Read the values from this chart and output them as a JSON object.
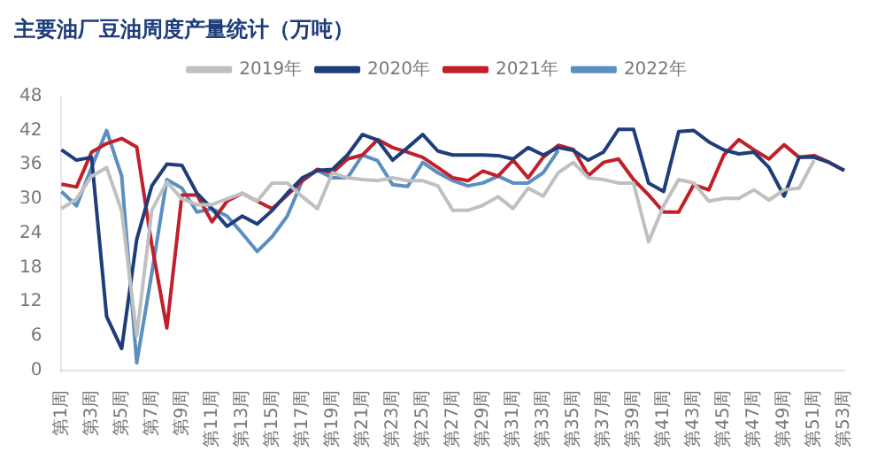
{
  "chart_data": {
    "type": "line",
    "title": "主要油厂豆油周度产量统计（万吨）",
    "categories": [
      "第1周",
      null,
      "第3周",
      null,
      "第5周",
      null,
      "第7周",
      null,
      "第9周",
      null,
      "第11周",
      null,
      "第13周",
      null,
      "第15周",
      null,
      "第17周",
      null,
      "第19周",
      null,
      "第21周",
      null,
      "第23周",
      null,
      "第25周",
      null,
      "第27周",
      null,
      "第29周",
      null,
      "第31周",
      null,
      "第33周",
      null,
      "第35周",
      null,
      "第37周",
      null,
      "第39周",
      null,
      "第41周",
      null,
      "第43周",
      null,
      "第45周",
      null,
      "第47周",
      null,
      "第49周",
      null,
      "第51周",
      null,
      "第53周"
    ],
    "series": [
      {
        "name": "2019年",
        "color": "#c0c0c0",
        "values": [
          28.3,
          30,
          34,
          35.5,
          27.9,
          6,
          28,
          33,
          30,
          29,
          29,
          30,
          31,
          29.6,
          32.8,
          32.8,
          30.4,
          28.3,
          34.6,
          33.7,
          33.4,
          33.2,
          33.7,
          33.2,
          33.2,
          32.3,
          28,
          28,
          28.9,
          30.4,
          28.3,
          31.9,
          30.5,
          34.6,
          36.4,
          33.7,
          33.4,
          32.8,
          32.8,
          22.5,
          28.8,
          33.4,
          32.8,
          29.6,
          30.1,
          30.1,
          31.6,
          29.8,
          31.6,
          31.9,
          36.8,
          null,
          null
        ]
      },
      {
        "name": "2020年",
        "color": "#1f3d7a",
        "values": [
          38.6,
          36.8,
          37.3,
          9.4,
          3.8,
          22.9,
          32.3,
          36.1,
          35.9,
          31,
          28.3,
          25.2,
          27,
          25.6,
          28,
          31,
          33.7,
          35,
          35.2,
          37.7,
          41.3,
          40.3,
          36.8,
          39,
          41.3,
          38.4,
          37.7,
          37.7,
          37.7,
          37.6,
          37,
          39,
          37.7,
          39,
          38.5,
          36.8,
          38.2,
          42.2,
          42.2,
          32.8,
          31.3,
          41.8,
          42,
          40,
          38.6,
          37.9,
          38.2,
          35.5,
          30.5,
          37.3,
          37.3,
          36.4,
          35
        ]
      },
      {
        "name": "2021年",
        "color": "#c0202a",
        "values": [
          32.6,
          32.1,
          38.2,
          39.7,
          40.6,
          39.1,
          22,
          7.4,
          30.7,
          30.7,
          26,
          29.6,
          31,
          29.6,
          28.3,
          30.7,
          33.2,
          35.2,
          34.6,
          37,
          37.7,
          40.4,
          39,
          38.2,
          37.3,
          35.5,
          33.7,
          33.2,
          34.9,
          34,
          36.8,
          33.7,
          37.3,
          39.4,
          38.7,
          34.1,
          36.4,
          37,
          33.4,
          30.7,
          27.7,
          27.7,
          32.5,
          31.6,
          37.7,
          40.4,
          38.6,
          37,
          39.5,
          37.3,
          37.6,
          36.4,
          35
        ]
      },
      {
        "name": "2022年",
        "color": "#5b8fc0",
        "values": [
          31.3,
          28.8,
          35.5,
          42,
          34,
          1.3,
          17,
          33.4,
          31.9,
          27.7,
          28.3,
          27,
          24,
          20.8,
          23.4,
          27,
          33.2,
          35,
          33.7,
          33.7,
          37.7,
          36.7,
          32.5,
          32.2,
          36.4,
          34.6,
          33.2,
          32.3,
          32.8,
          34,
          32.8,
          32.8,
          34.6,
          38.5,
          null,
          null,
          null,
          null,
          null,
          null,
          null,
          null,
          null,
          null,
          null,
          null,
          null,
          null,
          null,
          null,
          null,
          null,
          null
        ]
      }
    ],
    "ylim": [
      0,
      48
    ],
    "yticks": [
      0,
      6,
      12,
      18,
      24,
      30,
      36,
      42,
      48
    ],
    "grid": false,
    "legend": "top",
    "marker": "none"
  }
}
